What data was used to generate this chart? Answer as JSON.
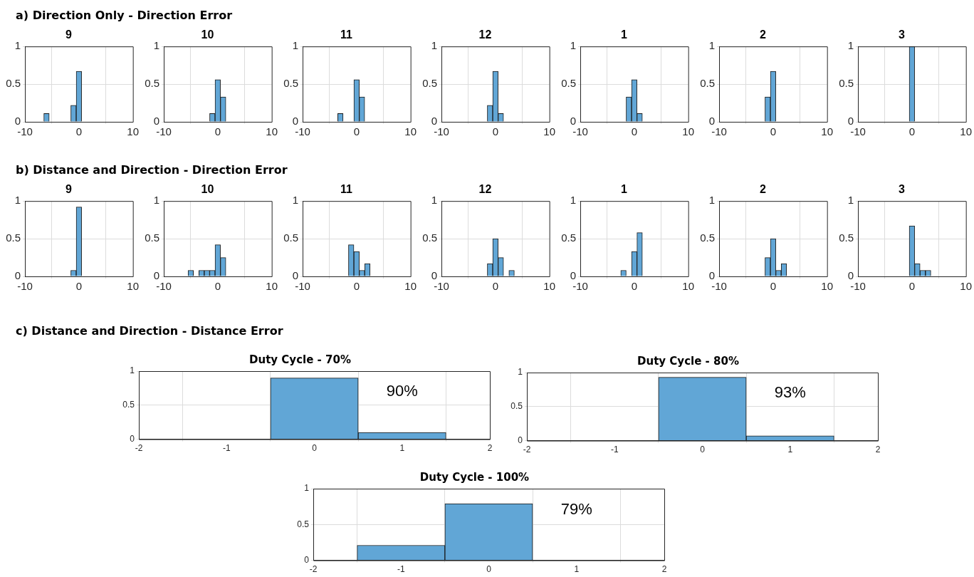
{
  "chart_data": [
    {
      "type": "histogram",
      "title": "9",
      "annotations": [
        "a) Direction Only - Direction Error"
      ],
      "bins": [
        -6.5,
        -5.5,
        -4.5,
        -3.5,
        -2.5,
        -1.5,
        -0.5,
        0.5,
        1.5,
        2.5,
        3.5,
        4.5,
        5.5,
        6.5
      ],
      "values": [
        0.11,
        0,
        0,
        0,
        0,
        0.22,
        0.67,
        0,
        0,
        0,
        0,
        0,
        0
      ],
      "color": "#61a6d6",
      "xlim": [
        -10,
        10
      ],
      "xticks": [
        -10,
        0,
        10
      ],
      "ylim": [
        0,
        1
      ],
      "yticks": [
        0,
        0.5,
        1
      ],
      "grid": true
    },
    {
      "type": "histogram",
      "title": "10",
      "bins": [
        -6.5,
        -5.5,
        -4.5,
        -3.5,
        -2.5,
        -1.5,
        -0.5,
        0.5,
        1.5,
        2.5,
        3.5,
        4.5,
        5.5,
        6.5
      ],
      "values": [
        0,
        0,
        0,
        0,
        0,
        0.11,
        0.56,
        0.33,
        0,
        0,
        0,
        0,
        0
      ],
      "color": "#61a6d6",
      "xlim": [
        -10,
        10
      ],
      "xticks": [
        -10,
        0,
        10
      ],
      "ylim": [
        0,
        1
      ],
      "yticks": [
        0,
        0.5,
        1
      ],
      "grid": true
    },
    {
      "type": "histogram",
      "title": "11",
      "bins": [
        -6.5,
        -5.5,
        -4.5,
        -3.5,
        -2.5,
        -1.5,
        -0.5,
        0.5,
        1.5,
        2.5,
        3.5,
        4.5,
        5.5,
        6.5
      ],
      "values": [
        0,
        0,
        0,
        0.11,
        0,
        0,
        0.56,
        0.33,
        0,
        0,
        0,
        0,
        0
      ],
      "color": "#61a6d6",
      "xlim": [
        -10,
        10
      ],
      "xticks": [
        -10,
        0,
        10
      ],
      "ylim": [
        0,
        1
      ],
      "yticks": [
        0,
        0.5,
        1
      ],
      "grid": true
    },
    {
      "type": "histogram",
      "title": "12",
      "bins": [
        -6.5,
        -5.5,
        -4.5,
        -3.5,
        -2.5,
        -1.5,
        -0.5,
        0.5,
        1.5,
        2.5,
        3.5,
        4.5,
        5.5,
        6.5
      ],
      "values": [
        0,
        0,
        0,
        0,
        0,
        0.22,
        0.67,
        0.11,
        0,
        0,
        0,
        0,
        0
      ],
      "color": "#61a6d6",
      "xlim": [
        -10,
        10
      ],
      "xticks": [
        -10,
        0,
        10
      ],
      "ylim": [
        0,
        1
      ],
      "yticks": [
        0,
        0.5,
        1
      ],
      "grid": true
    },
    {
      "type": "histogram",
      "title": "1",
      "bins": [
        -6.5,
        -5.5,
        -4.5,
        -3.5,
        -2.5,
        -1.5,
        -0.5,
        0.5,
        1.5,
        2.5,
        3.5,
        4.5,
        5.5,
        6.5
      ],
      "values": [
        0,
        0,
        0,
        0,
        0,
        0.33,
        0.56,
        0.11,
        0,
        0,
        0,
        0,
        0
      ],
      "color": "#61a6d6",
      "xlim": [
        -10,
        10
      ],
      "xticks": [
        -10,
        0,
        10
      ],
      "ylim": [
        0,
        1
      ],
      "yticks": [
        0,
        0.5,
        1
      ],
      "grid": true
    },
    {
      "type": "histogram",
      "title": "2",
      "bins": [
        -6.5,
        -5.5,
        -4.5,
        -3.5,
        -2.5,
        -1.5,
        -0.5,
        0.5,
        1.5,
        2.5,
        3.5,
        4.5,
        5.5,
        6.5
      ],
      "values": [
        0,
        0,
        0,
        0,
        0,
        0.33,
        0.67,
        0,
        0,
        0,
        0,
        0,
        0
      ],
      "color": "#61a6d6",
      "xlim": [
        -10,
        10
      ],
      "xticks": [
        -10,
        0,
        10
      ],
      "ylim": [
        0,
        1
      ],
      "yticks": [
        0,
        0.5,
        1
      ],
      "grid": true
    },
    {
      "type": "histogram",
      "title": "3",
      "bins": [
        -6.5,
        -5.5,
        -4.5,
        -3.5,
        -2.5,
        -1.5,
        -0.5,
        0.5,
        1.5,
        2.5,
        3.5,
        4.5,
        5.5,
        6.5
      ],
      "values": [
        0,
        0,
        0,
        0,
        0,
        0,
        1,
        0,
        0,
        0,
        0,
        0,
        0
      ],
      "color": "#61a6d6",
      "xlim": [
        -10,
        10
      ],
      "xticks": [
        -10,
        0,
        10
      ],
      "ylim": [
        0,
        1
      ],
      "yticks": [
        0,
        0.5,
        1
      ],
      "grid": true
    },
    {
      "type": "histogram",
      "title": "9",
      "annotations": [
        "b) Distance and Direction - Direction Error"
      ],
      "bins": [
        -6.5,
        -5.5,
        -4.5,
        -3.5,
        -2.5,
        -1.5,
        -0.5,
        0.5,
        1.5,
        2.5,
        3.5,
        4.5,
        5.5,
        6.5
      ],
      "values": [
        0,
        0,
        0,
        0,
        0,
        0.08,
        0.92,
        0,
        0,
        0,
        0,
        0,
        0
      ],
      "color": "#61a6d6",
      "xlim": [
        -10,
        10
      ],
      "xticks": [
        -10,
        0,
        10
      ],
      "ylim": [
        0,
        1
      ],
      "yticks": [
        0,
        0.5,
        1
      ],
      "grid": true
    },
    {
      "type": "histogram",
      "title": "10",
      "bins": [
        -6.5,
        -5.5,
        -4.5,
        -3.5,
        -2.5,
        -1.5,
        -0.5,
        0.5,
        1.5,
        2.5,
        3.5,
        4.5,
        5.5,
        6.5
      ],
      "values": [
        0,
        0.08,
        0,
        0.08,
        0.08,
        0.08,
        0.42,
        0.25,
        0,
        0,
        0,
        0,
        0
      ],
      "color": "#61a6d6",
      "xlim": [
        -10,
        10
      ],
      "xticks": [
        -10,
        0,
        10
      ],
      "ylim": [
        0,
        1
      ],
      "yticks": [
        0,
        0.5,
        1
      ],
      "grid": true
    },
    {
      "type": "histogram",
      "title": "11",
      "bins": [
        -6.5,
        -5.5,
        -4.5,
        -3.5,
        -2.5,
        -1.5,
        -0.5,
        0.5,
        1.5,
        2.5,
        3.5,
        4.5,
        5.5,
        6.5
      ],
      "values": [
        0,
        0,
        0,
        0,
        0,
        0.42,
        0.33,
        0.08,
        0.17,
        0,
        0,
        0,
        0
      ],
      "color": "#61a6d6",
      "xlim": [
        -10,
        10
      ],
      "xticks": [
        -10,
        0,
        10
      ],
      "ylim": [
        0,
        1
      ],
      "yticks": [
        0,
        0.5,
        1
      ],
      "grid": true
    },
    {
      "type": "histogram",
      "title": "12",
      "bins": [
        -6.5,
        -5.5,
        -4.5,
        -3.5,
        -2.5,
        -1.5,
        -0.5,
        0.5,
        1.5,
        2.5,
        3.5,
        4.5,
        5.5,
        6.5
      ],
      "values": [
        0,
        0,
        0,
        0,
        0,
        0.17,
        0.5,
        0.25,
        0,
        0.08,
        0,
        0,
        0
      ],
      "color": "#61a6d6",
      "xlim": [
        -10,
        10
      ],
      "xticks": [
        -10,
        0,
        10
      ],
      "ylim": [
        0,
        1
      ],
      "yticks": [
        0,
        0.5,
        1
      ],
      "grid": true
    },
    {
      "type": "histogram",
      "title": "1",
      "bins": [
        -6.5,
        -5.5,
        -4.5,
        -3.5,
        -2.5,
        -1.5,
        -0.5,
        0.5,
        1.5,
        2.5,
        3.5,
        4.5,
        5.5,
        6.5
      ],
      "values": [
        0,
        0,
        0,
        0,
        0.08,
        0,
        0.33,
        0.58,
        0,
        0,
        0,
        0,
        0
      ],
      "color": "#61a6d6",
      "xlim": [
        -10,
        10
      ],
      "xticks": [
        -10,
        0,
        10
      ],
      "ylim": [
        0,
        1
      ],
      "yticks": [
        0,
        0.5,
        1
      ],
      "grid": true
    },
    {
      "type": "histogram",
      "title": "2",
      "bins": [
        -6.5,
        -5.5,
        -4.5,
        -3.5,
        -2.5,
        -1.5,
        -0.5,
        0.5,
        1.5,
        2.5,
        3.5,
        4.5,
        5.5,
        6.5
      ],
      "values": [
        0,
        0,
        0,
        0,
        0,
        0.25,
        0.5,
        0.08,
        0.17,
        0,
        0,
        0,
        0
      ],
      "color": "#61a6d6",
      "xlim": [
        -10,
        10
      ],
      "xticks": [
        -10,
        0,
        10
      ],
      "ylim": [
        0,
        1
      ],
      "yticks": [
        0,
        0.5,
        1
      ],
      "grid": true
    },
    {
      "type": "histogram",
      "title": "3",
      "bins": [
        -6.5,
        -5.5,
        -4.5,
        -3.5,
        -2.5,
        -1.5,
        -0.5,
        0.5,
        1.5,
        2.5,
        3.5,
        4.5,
        5.5,
        6.5
      ],
      "values": [
        0,
        0,
        0,
        0,
        0,
        0,
        0.67,
        0.17,
        0.08,
        0.08,
        0,
        0,
        0
      ],
      "color": "#61a6d6",
      "xlim": [
        -10,
        10
      ],
      "xticks": [
        -10,
        0,
        10
      ],
      "ylim": [
        0,
        1
      ],
      "yticks": [
        0,
        0.5,
        1
      ],
      "grid": true
    },
    {
      "type": "histogram",
      "title": "Duty Cycle - 70%",
      "annotations": [
        "c) Distance and Direction - Distance Error",
        "90%"
      ],
      "bins": [
        -1.5,
        -0.5,
        0.5,
        1.5
      ],
      "values": [
        0,
        0.9,
        0.1
      ],
      "color": "#61a6d6",
      "xlim": [
        -2,
        2
      ],
      "xticks": [
        -2,
        -1,
        0,
        1,
        2
      ],
      "ylim": [
        0,
        1
      ],
      "yticks": [
        0,
        0.5,
        1
      ],
      "grid": true
    },
    {
      "type": "histogram",
      "title": "Duty Cycle - 80%",
      "annotations": [
        "93%"
      ],
      "bins": [
        -1.5,
        -0.5,
        0.5,
        1.5
      ],
      "values": [
        0,
        0.93,
        0.07
      ],
      "color": "#61a6d6",
      "xlim": [
        -2,
        2
      ],
      "xticks": [
        -2,
        -1,
        0,
        1,
        2
      ],
      "ylim": [
        0,
        1
      ],
      "yticks": [
        0,
        0.5,
        1
      ],
      "grid": true
    },
    {
      "type": "histogram",
      "title": "Duty Cycle - 100%",
      "annotations": [
        "79%"
      ],
      "bins": [
        -1.5,
        -0.5,
        0.5,
        1.5
      ],
      "values": [
        0.21,
        0.79,
        0
      ],
      "color": "#61a6d6",
      "xlim": [
        -2,
        2
      ],
      "xticks": [
        -2,
        -1,
        0,
        1,
        2
      ],
      "ylim": [
        0,
        1
      ],
      "yticks": [
        0,
        0.5,
        1
      ],
      "grid": true
    }
  ]
}
